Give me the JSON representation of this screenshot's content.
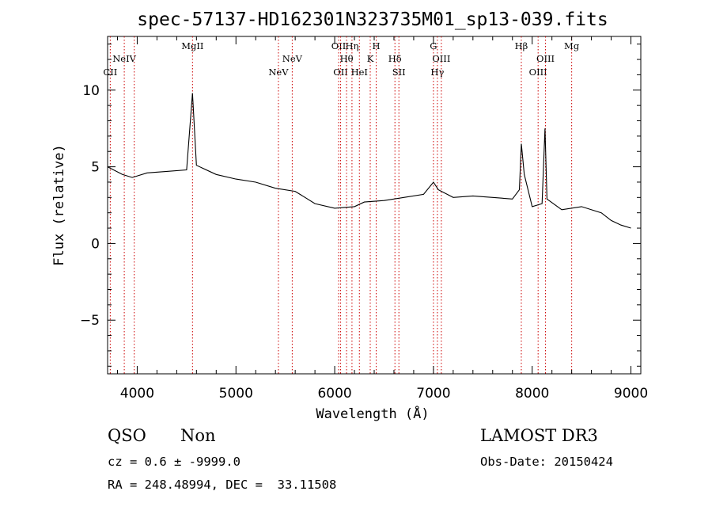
{
  "chart_data": {
    "type": "line",
    "title": "spec-57137-HD162301N323735M01_sp13-039.fits",
    "xlabel": "Wavelength (Å)",
    "ylabel": "Flux (relative)",
    "xlim": [
      3700,
      9100
    ],
    "ylim": [
      -8.5,
      13.5
    ],
    "xticks": [
      4000,
      5000,
      6000,
      7000,
      8000,
      9000
    ],
    "yticks": [
      -5,
      0,
      5,
      10
    ],
    "grid": false,
    "lines": [
      {
        "label": "CII",
        "x": 3727,
        "row": 2
      },
      {
        "label": "NeIV",
        "x": 3869,
        "row": 1
      },
      {
        "label": "",
        "x": 3970,
        "row": 0
      },
      {
        "label": "MgII",
        "x": 4560,
        "row": 0
      },
      {
        "label": "NeV",
        "x": 5430,
        "row": 2
      },
      {
        "label": "NeV",
        "x": 5570,
        "row": 1
      },
      {
        "label": "OII",
        "x": 6040,
        "row": 0
      },
      {
        "label": "OII",
        "x": 6060,
        "row": 2
      },
      {
        "label": "Hη",
        "x": 6175,
        "row": 0
      },
      {
        "label": "Hθ",
        "x": 6120,
        "row": 1
      },
      {
        "label": "HeI",
        "x": 6250,
        "row": 2
      },
      {
        "label": "K",
        "x": 6360,
        "row": 1
      },
      {
        "label": "H",
        "x": 6420,
        "row": 0
      },
      {
        "label": "Hδ",
        "x": 6610,
        "row": 1
      },
      {
        "label": "SII",
        "x": 6650,
        "row": 2
      },
      {
        "label": "G",
        "x": 7000,
        "row": 0
      },
      {
        "label": "Hγ",
        "x": 7040,
        "row": 2
      },
      {
        "label": "OIII",
        "x": 7080,
        "row": 1
      },
      {
        "label": "Hβ",
        "x": 7890,
        "row": 0
      },
      {
        "label": "OIII",
        "x": 8060,
        "row": 2
      },
      {
        "label": "OIII",
        "x": 8135,
        "row": 1
      },
      {
        "label": "Mg",
        "x": 8400,
        "row": 0
      }
    ],
    "series": [
      {
        "x": [
          3700,
          3850,
          3950,
          4100,
          4300,
          4500,
          4560,
          4600,
          4800,
          5000,
          5200,
          5400,
          5600,
          5700,
          5800,
          6000,
          6200,
          6300,
          6500,
          6700,
          6900,
          7000,
          7050,
          7200,
          7400,
          7600,
          7800,
          7870,
          7890,
          7920,
          8000,
          8100,
          8130,
          8150,
          8300,
          8500,
          8700,
          8800,
          8900,
          9000
        ],
        "y": [
          5.0,
          4.5,
          4.3,
          4.6,
          4.7,
          4.8,
          9.8,
          5.1,
          4.5,
          4.2,
          4.0,
          3.6,
          3.4,
          3.0,
          2.6,
          2.3,
          2.4,
          2.7,
          2.8,
          3.0,
          3.2,
          4.0,
          3.5,
          3.0,
          3.1,
          3.0,
          2.9,
          3.5,
          6.5,
          4.5,
          2.4,
          2.6,
          7.5,
          2.9,
          2.2,
          2.4,
          2.0,
          1.5,
          1.2,
          1.0
        ]
      }
    ]
  },
  "info": {
    "class": "QSO",
    "subclass": "Non",
    "survey": "LAMOST DR3",
    "cz": "cz = 0.6 ± -9999.0",
    "obsdate": "Obs-Date: 20150424",
    "radec": "RA = 248.48994, DEC =  33.11508"
  }
}
